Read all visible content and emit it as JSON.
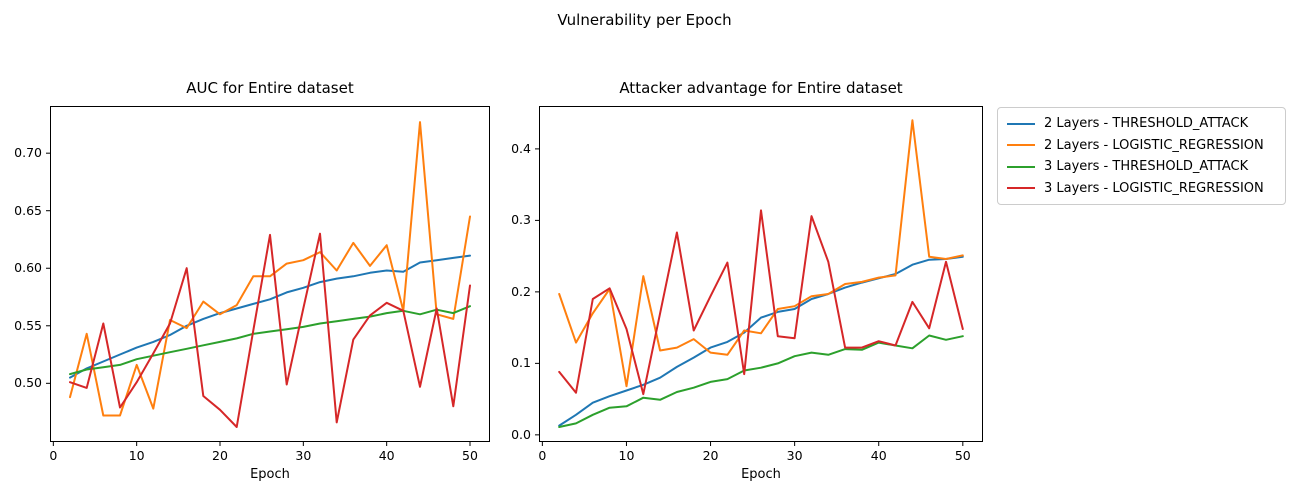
{
  "figure": {
    "title": "Vulnerability per Epoch"
  },
  "colors": {
    "blue": "#1f77b4",
    "orange": "#ff7f0e",
    "green": "#2ca02c",
    "red": "#d62728",
    "spine": "#000000",
    "legend_border": "#cccccc"
  },
  "legend": {
    "entries": [
      {
        "label": "2 Layers - THRESHOLD_ATTACK",
        "color": "#1f77b4"
      },
      {
        "label": "2 Layers - LOGISTIC_REGRESSION",
        "color": "#ff7f0e"
      },
      {
        "label": "3 Layers - THRESHOLD_ATTACK",
        "color": "#2ca02c"
      },
      {
        "label": "3 Layers - LOGISTIC_REGRESSION",
        "color": "#d62728"
      }
    ]
  },
  "chart_data": [
    {
      "type": "line",
      "title": "AUC for Entire dataset",
      "xlabel": "Epoch",
      "legend_position": "outside-right-of-second-subplot",
      "grid": false,
      "x": [
        2,
        4,
        6,
        8,
        10,
        12,
        14,
        16,
        18,
        20,
        22,
        24,
        26,
        28,
        30,
        32,
        34,
        36,
        38,
        40,
        42,
        44,
        46,
        48,
        50
      ],
      "xlim": [
        -0.4,
        52.4
      ],
      "ylim": [
        0.449,
        0.741
      ],
      "xticks": [
        0,
        10,
        20,
        30,
        40,
        50
      ],
      "xtick_labels": [
        "0",
        "10",
        "20",
        "30",
        "40",
        "50"
      ],
      "yticks": [
        0.5,
        0.55,
        0.6,
        0.65,
        0.7
      ],
      "ytick_labels": [
        "0.50",
        "0.55",
        "0.60",
        "0.65",
        "0.70"
      ],
      "series": [
        {
          "name": "2 Layers - THRESHOLD_ATTACK",
          "color": "#1f77b4",
          "values": [
            0.505,
            0.513,
            0.519,
            0.525,
            0.531,
            0.536,
            0.542,
            0.55,
            0.556,
            0.561,
            0.565,
            0.569,
            0.573,
            0.579,
            0.583,
            0.588,
            0.591,
            0.593,
            0.596,
            0.598,
            0.597,
            0.605,
            0.607,
            0.609,
            0.611
          ]
        },
        {
          "name": "2 Layers - LOGISTIC_REGRESSION",
          "color": "#ff7f0e",
          "values": [
            0.488,
            0.543,
            0.472,
            0.472,
            0.516,
            0.478,
            0.555,
            0.548,
            0.571,
            0.56,
            0.568,
            0.593,
            0.593,
            0.604,
            0.607,
            0.614,
            0.598,
            0.622,
            0.602,
            0.62,
            0.563,
            0.727,
            0.56,
            0.556,
            0.645
          ]
        },
        {
          "name": "3 Layers - THRESHOLD_ATTACK",
          "color": "#2ca02c",
          "values": [
            0.508,
            0.512,
            0.514,
            0.516,
            0.521,
            0.524,
            0.527,
            0.53,
            0.533,
            0.536,
            0.539,
            0.543,
            0.545,
            0.547,
            0.549,
            0.552,
            0.554,
            0.556,
            0.558,
            0.561,
            0.563,
            0.56,
            0.564,
            0.561,
            0.567
          ]
        },
        {
          "name": "3 Layers - LOGISTIC_REGRESSION",
          "color": "#d62728",
          "values": [
            0.501,
            0.496,
            0.552,
            0.479,
            0.501,
            0.526,
            0.552,
            0.6,
            0.489,
            0.477,
            0.462,
            0.546,
            0.629,
            0.499,
            0.565,
            0.63,
            0.466,
            0.538,
            0.559,
            0.57,
            0.563,
            0.497,
            0.565,
            0.48,
            0.585
          ]
        }
      ]
    },
    {
      "type": "line",
      "title": "Attacker advantage for Entire dataset",
      "xlabel": "Epoch",
      "grid": false,
      "x": [
        2,
        4,
        6,
        8,
        10,
        12,
        14,
        16,
        18,
        20,
        22,
        24,
        26,
        28,
        30,
        32,
        34,
        36,
        38,
        40,
        42,
        44,
        46,
        48,
        50
      ],
      "xlim": [
        -0.4,
        52.4
      ],
      "ylim": [
        -0.01,
        0.46
      ],
      "xticks": [
        0,
        10,
        20,
        30,
        40,
        50
      ],
      "xtick_labels": [
        "0",
        "10",
        "20",
        "30",
        "40",
        "50"
      ],
      "yticks": [
        0.0,
        0.1,
        0.2,
        0.3,
        0.4
      ],
      "ytick_labels": [
        "0.0",
        "0.1",
        "0.2",
        "0.3",
        "0.4"
      ],
      "series": [
        {
          "name": "2 Layers - THRESHOLD_ATTACK",
          "color": "#1f77b4",
          "values": [
            0.013,
            0.028,
            0.045,
            0.054,
            0.062,
            0.07,
            0.08,
            0.095,
            0.108,
            0.122,
            0.13,
            0.143,
            0.164,
            0.172,
            0.176,
            0.19,
            0.197,
            0.206,
            0.213,
            0.219,
            0.225,
            0.238,
            0.245,
            0.246,
            0.249
          ]
        },
        {
          "name": "2 Layers - LOGISTIC_REGRESSION",
          "color": "#ff7f0e",
          "values": [
            0.197,
            0.129,
            0.17,
            0.204,
            0.068,
            0.222,
            0.118,
            0.122,
            0.134,
            0.115,
            0.112,
            0.146,
            0.142,
            0.176,
            0.18,
            0.194,
            0.197,
            0.211,
            0.214,
            0.22,
            0.223,
            0.44,
            0.249,
            0.246,
            0.251
          ]
        },
        {
          "name": "3 Layers - THRESHOLD_ATTACK",
          "color": "#2ca02c",
          "values": [
            0.011,
            0.016,
            0.028,
            0.038,
            0.04,
            0.052,
            0.049,
            0.06,
            0.066,
            0.074,
            0.078,
            0.09,
            0.094,
            0.1,
            0.11,
            0.115,
            0.112,
            0.12,
            0.119,
            0.129,
            0.125,
            0.121,
            0.139,
            0.133,
            0.138
          ]
        },
        {
          "name": "3 Layers - LOGISTIC_REGRESSION",
          "color": "#d62728",
          "values": [
            0.088,
            0.059,
            0.19,
            0.205,
            0.148,
            0.057,
            0.17,
            0.283,
            0.146,
            0.194,
            0.241,
            0.085,
            0.314,
            0.138,
            0.135,
            0.306,
            0.242,
            0.122,
            0.122,
            0.131,
            0.125,
            0.186,
            0.149,
            0.242,
            0.148
          ]
        }
      ]
    }
  ]
}
